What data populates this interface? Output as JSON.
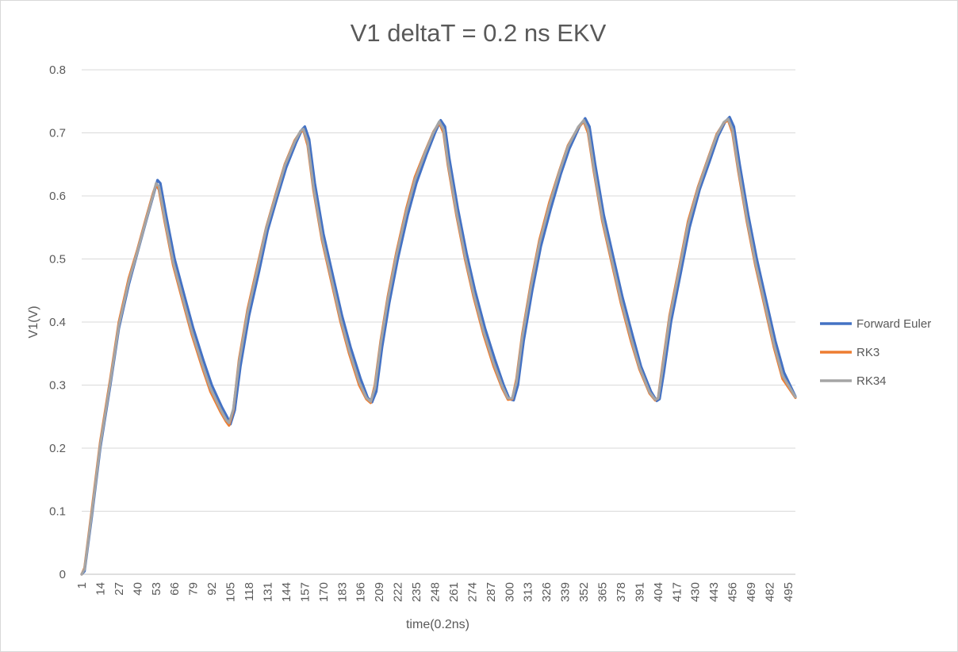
{
  "chart_data": {
    "type": "line",
    "title": "V1 deltaT = 0.2 ns EKV",
    "xlabel": "time(0.2ns)",
    "ylabel": "V1(V)",
    "ylim": [
      0,
      0.8
    ],
    "yticks": [
      "0",
      "0.1",
      "0.2",
      "0.3",
      "0.4",
      "0.5",
      "0.6",
      "0.7",
      "0.8"
    ],
    "xrange": [
      1,
      500
    ],
    "xticks": [
      "1",
      "14",
      "27",
      "40",
      "53",
      "66",
      "79",
      "92",
      "105",
      "118",
      "131",
      "144",
      "157",
      "170",
      "183",
      "196",
      "209",
      "222",
      "235",
      "248",
      "261",
      "274",
      "287",
      "300",
      "313",
      "326",
      "339",
      "352",
      "365",
      "378",
      "391",
      "404",
      "417",
      "430",
      "443",
      "456",
      "469",
      "482",
      "495"
    ],
    "grid": "horizontal",
    "legend_position": "right",
    "series": [
      {
        "name": "Forward Euler",
        "color": "#4472C4",
        "points": [
          [
            1,
            0
          ],
          [
            3,
            0.005
          ],
          [
            8,
            0.09
          ],
          [
            14,
            0.2
          ],
          [
            21,
            0.3
          ],
          [
            27,
            0.39
          ],
          [
            34,
            0.46
          ],
          [
            40,
            0.51
          ],
          [
            46,
            0.56
          ],
          [
            51,
            0.6
          ],
          [
            54,
            0.625
          ],
          [
            56,
            0.62
          ],
          [
            60,
            0.57
          ],
          [
            66,
            0.5
          ],
          [
            73,
            0.44
          ],
          [
            79,
            0.39
          ],
          [
            86,
            0.34
          ],
          [
            92,
            0.3
          ],
          [
            99,
            0.265
          ],
          [
            103,
            0.248
          ],
          [
            105,
            0.238
          ],
          [
            108,
            0.26
          ],
          [
            112,
            0.33
          ],
          [
            118,
            0.41
          ],
          [
            125,
            0.48
          ],
          [
            131,
            0.545
          ],
          [
            138,
            0.6
          ],
          [
            144,
            0.645
          ],
          [
            151,
            0.685
          ],
          [
            155,
            0.705
          ],
          [
            157,
            0.71
          ],
          [
            160,
            0.69
          ],
          [
            164,
            0.62
          ],
          [
            170,
            0.54
          ],
          [
            177,
            0.47
          ],
          [
            183,
            0.41
          ],
          [
            189,
            0.36
          ],
          [
            196,
            0.31
          ],
          [
            201,
            0.28
          ],
          [
            204,
            0.273
          ],
          [
            207,
            0.29
          ],
          [
            211,
            0.36
          ],
          [
            216,
            0.43
          ],
          [
            222,
            0.5
          ],
          [
            229,
            0.57
          ],
          [
            235,
            0.62
          ],
          [
            242,
            0.665
          ],
          [
            248,
            0.7
          ],
          [
            252,
            0.72
          ],
          [
            255,
            0.71
          ],
          [
            258,
            0.66
          ],
          [
            264,
            0.58
          ],
          [
            270,
            0.51
          ],
          [
            276,
            0.45
          ],
          [
            283,
            0.39
          ],
          [
            290,
            0.34
          ],
          [
            296,
            0.3
          ],
          [
            300,
            0.278
          ],
          [
            303,
            0.276
          ],
          [
            306,
            0.3
          ],
          [
            310,
            0.37
          ],
          [
            316,
            0.45
          ],
          [
            322,
            0.52
          ],
          [
            329,
            0.58
          ],
          [
            336,
            0.635
          ],
          [
            342,
            0.675
          ],
          [
            349,
            0.71
          ],
          [
            353,
            0.723
          ],
          [
            356,
            0.71
          ],
          [
            360,
            0.65
          ],
          [
            366,
            0.57
          ],
          [
            373,
            0.5
          ],
          [
            379,
            0.44
          ],
          [
            386,
            0.38
          ],
          [
            392,
            0.33
          ],
          [
            399,
            0.29
          ],
          [
            403,
            0.275
          ],
          [
            405,
            0.278
          ],
          [
            408,
            0.32
          ],
          [
            413,
            0.4
          ],
          [
            420,
            0.48
          ],
          [
            426,
            0.55
          ],
          [
            433,
            0.61
          ],
          [
            440,
            0.655
          ],
          [
            446,
            0.695
          ],
          [
            451,
            0.718
          ],
          [
            454,
            0.725
          ],
          [
            457,
            0.71
          ],
          [
            461,
            0.65
          ],
          [
            467,
            0.57
          ],
          [
            473,
            0.5
          ],
          [
            480,
            0.43
          ],
          [
            486,
            0.37
          ],
          [
            492,
            0.32
          ],
          [
            500,
            0.282
          ]
        ]
      },
      {
        "name": "RK3",
        "color": "#ED7D31",
        "points": [
          [
            1,
            0
          ],
          [
            3,
            0.01
          ],
          [
            8,
            0.1
          ],
          [
            14,
            0.21
          ],
          [
            21,
            0.31
          ],
          [
            27,
            0.4
          ],
          [
            34,
            0.47
          ],
          [
            40,
            0.515
          ],
          [
            46,
            0.565
          ],
          [
            51,
            0.605
          ],
          [
            53,
            0.618
          ],
          [
            55,
            0.61
          ],
          [
            59,
            0.56
          ],
          [
            65,
            0.49
          ],
          [
            72,
            0.43
          ],
          [
            78,
            0.38
          ],
          [
            85,
            0.33
          ],
          [
            91,
            0.29
          ],
          [
            98,
            0.258
          ],
          [
            102,
            0.242
          ],
          [
            104,
            0.236
          ],
          [
            107,
            0.26
          ],
          [
            111,
            0.34
          ],
          [
            117,
            0.42
          ],
          [
            124,
            0.49
          ],
          [
            130,
            0.55
          ],
          [
            137,
            0.605
          ],
          [
            143,
            0.65
          ],
          [
            150,
            0.688
          ],
          [
            154,
            0.702
          ],
          [
            156,
            0.704
          ],
          [
            159,
            0.68
          ],
          [
            163,
            0.61
          ],
          [
            169,
            0.53
          ],
          [
            176,
            0.46
          ],
          [
            182,
            0.4
          ],
          [
            188,
            0.35
          ],
          [
            195,
            0.3
          ],
          [
            200,
            0.278
          ],
          [
            203,
            0.272
          ],
          [
            206,
            0.3
          ],
          [
            210,
            0.37
          ],
          [
            215,
            0.44
          ],
          [
            221,
            0.51
          ],
          [
            228,
            0.58
          ],
          [
            234,
            0.63
          ],
          [
            241,
            0.67
          ],
          [
            247,
            0.702
          ],
          [
            251,
            0.716
          ],
          [
            254,
            0.7
          ],
          [
            257,
            0.65
          ],
          [
            263,
            0.57
          ],
          [
            269,
            0.5
          ],
          [
            275,
            0.44
          ],
          [
            282,
            0.38
          ],
          [
            289,
            0.33
          ],
          [
            295,
            0.295
          ],
          [
            299,
            0.277
          ],
          [
            302,
            0.278
          ],
          [
            305,
            0.31
          ],
          [
            309,
            0.38
          ],
          [
            315,
            0.46
          ],
          [
            321,
            0.53
          ],
          [
            328,
            0.59
          ],
          [
            335,
            0.64
          ],
          [
            341,
            0.68
          ],
          [
            348,
            0.708
          ],
          [
            352,
            0.718
          ],
          [
            355,
            0.7
          ],
          [
            359,
            0.64
          ],
          [
            365,
            0.56
          ],
          [
            372,
            0.49
          ],
          [
            378,
            0.43
          ],
          [
            385,
            0.37
          ],
          [
            391,
            0.325
          ],
          [
            398,
            0.287
          ],
          [
            402,
            0.276
          ],
          [
            404,
            0.28
          ],
          [
            407,
            0.33
          ],
          [
            412,
            0.41
          ],
          [
            419,
            0.49
          ],
          [
            425,
            0.56
          ],
          [
            432,
            0.615
          ],
          [
            439,
            0.66
          ],
          [
            445,
            0.698
          ],
          [
            450,
            0.716
          ],
          [
            453,
            0.72
          ],
          [
            456,
            0.7
          ],
          [
            460,
            0.64
          ],
          [
            466,
            0.56
          ],
          [
            472,
            0.49
          ],
          [
            479,
            0.42
          ],
          [
            485,
            0.36
          ],
          [
            491,
            0.31
          ],
          [
            500,
            0.28
          ]
        ]
      },
      {
        "name": "RK34",
        "color": "#A5A5A5",
        "points": [
          [
            1,
            0
          ],
          [
            3,
            0.008
          ],
          [
            8,
            0.095
          ],
          [
            14,
            0.205
          ],
          [
            21,
            0.305
          ],
          [
            27,
            0.395
          ],
          [
            34,
            0.465
          ],
          [
            40,
            0.512
          ],
          [
            46,
            0.562
          ],
          [
            51,
            0.602
          ],
          [
            53,
            0.62
          ],
          [
            55,
            0.615
          ],
          [
            59,
            0.565
          ],
          [
            65,
            0.495
          ],
          [
            72,
            0.435
          ],
          [
            78,
            0.385
          ],
          [
            85,
            0.335
          ],
          [
            91,
            0.295
          ],
          [
            98,
            0.262
          ],
          [
            102,
            0.245
          ],
          [
            104,
            0.24
          ],
          [
            107,
            0.262
          ],
          [
            111,
            0.335
          ],
          [
            117,
            0.415
          ],
          [
            124,
            0.485
          ],
          [
            130,
            0.548
          ],
          [
            137,
            0.602
          ],
          [
            143,
            0.648
          ],
          [
            150,
            0.686
          ],
          [
            154,
            0.703
          ],
          [
            156,
            0.706
          ],
          [
            159,
            0.685
          ],
          [
            163,
            0.615
          ],
          [
            169,
            0.535
          ],
          [
            176,
            0.465
          ],
          [
            182,
            0.405
          ],
          [
            188,
            0.355
          ],
          [
            195,
            0.305
          ],
          [
            200,
            0.28
          ],
          [
            203,
            0.274
          ],
          [
            206,
            0.295
          ],
          [
            210,
            0.365
          ],
          [
            215,
            0.435
          ],
          [
            221,
            0.505
          ],
          [
            228,
            0.575
          ],
          [
            234,
            0.625
          ],
          [
            241,
            0.668
          ],
          [
            247,
            0.701
          ],
          [
            251,
            0.718
          ],
          [
            254,
            0.705
          ],
          [
            257,
            0.655
          ],
          [
            263,
            0.575
          ],
          [
            269,
            0.505
          ],
          [
            275,
            0.445
          ],
          [
            282,
            0.385
          ],
          [
            289,
            0.335
          ],
          [
            295,
            0.298
          ],
          [
            299,
            0.279
          ],
          [
            302,
            0.279
          ],
          [
            305,
            0.305
          ],
          [
            309,
            0.375
          ],
          [
            315,
            0.455
          ],
          [
            321,
            0.525
          ],
          [
            328,
            0.585
          ],
          [
            335,
            0.638
          ],
          [
            341,
            0.678
          ],
          [
            348,
            0.709
          ],
          [
            352,
            0.72
          ],
          [
            355,
            0.705
          ],
          [
            359,
            0.645
          ],
          [
            365,
            0.565
          ],
          [
            372,
            0.495
          ],
          [
            378,
            0.435
          ],
          [
            385,
            0.375
          ],
          [
            391,
            0.328
          ],
          [
            398,
            0.289
          ],
          [
            402,
            0.277
          ],
          [
            404,
            0.279
          ],
          [
            407,
            0.325
          ],
          [
            412,
            0.405
          ],
          [
            419,
            0.485
          ],
          [
            425,
            0.555
          ],
          [
            432,
            0.612
          ],
          [
            439,
            0.658
          ],
          [
            445,
            0.696
          ],
          [
            450,
            0.717
          ],
          [
            453,
            0.722
          ],
          [
            456,
            0.705
          ],
          [
            460,
            0.645
          ],
          [
            466,
            0.565
          ],
          [
            472,
            0.495
          ],
          [
            479,
            0.425
          ],
          [
            485,
            0.365
          ],
          [
            491,
            0.315
          ],
          [
            500,
            0.281
          ]
        ]
      }
    ]
  }
}
